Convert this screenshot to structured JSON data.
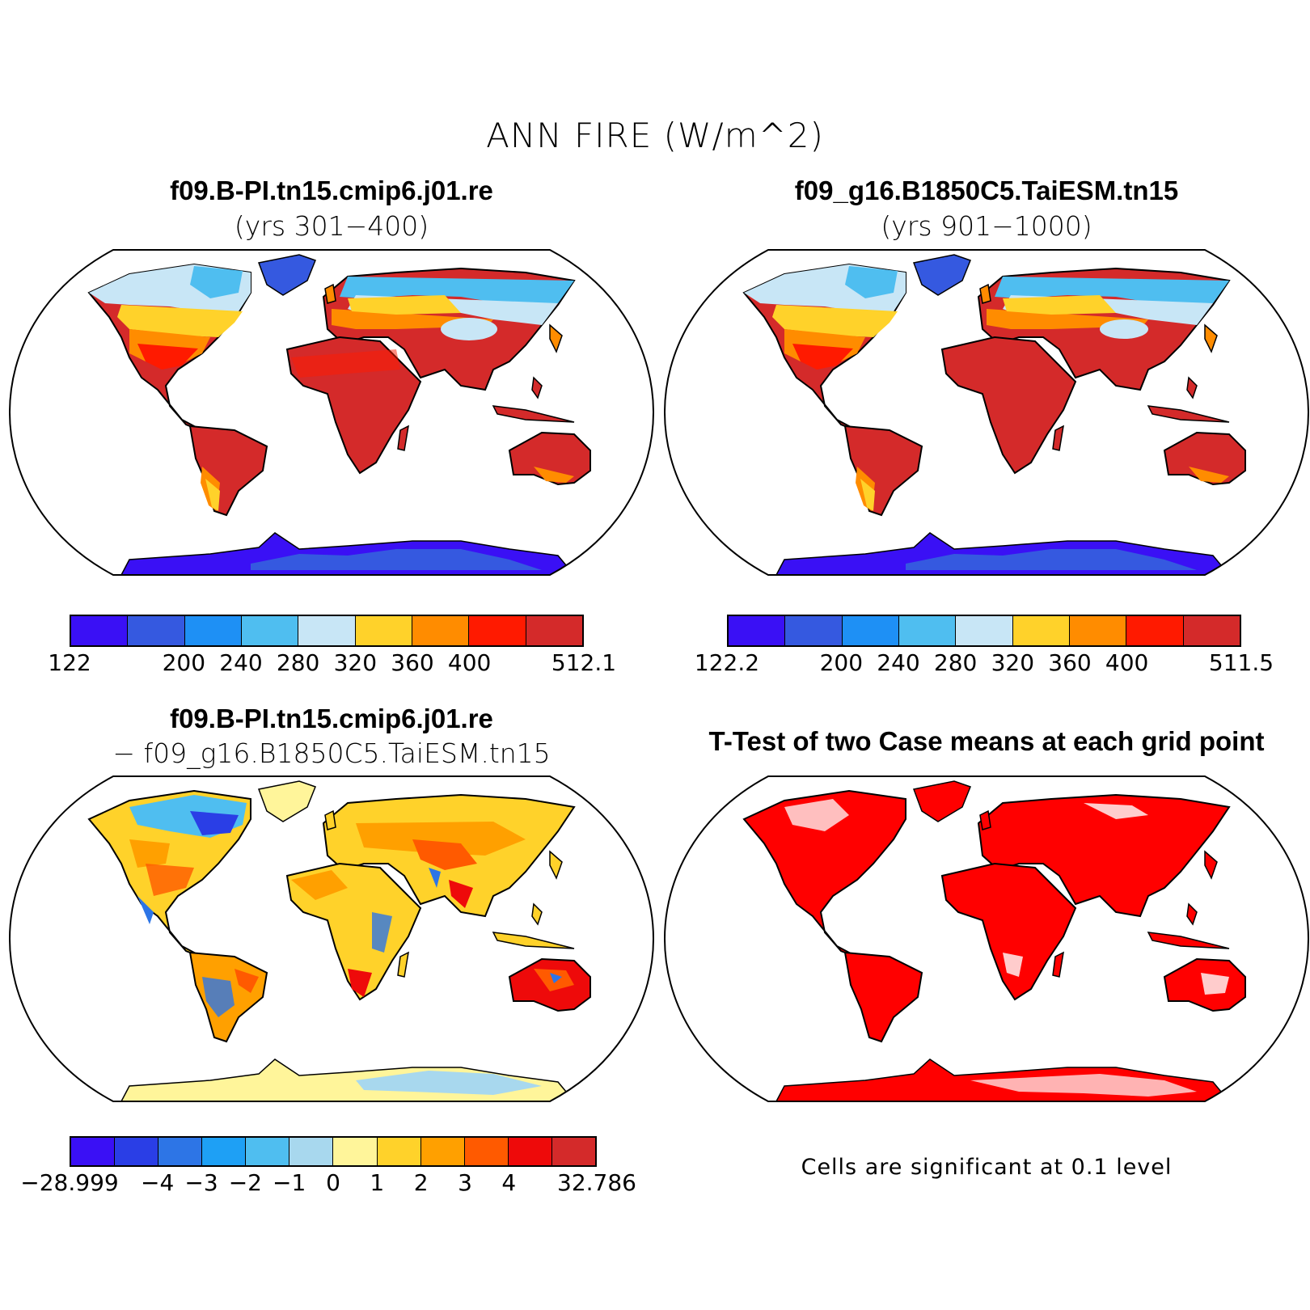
{
  "figure": {
    "title": "ANN FIRE (W/m^2)"
  },
  "panels": {
    "top_left": {
      "case": "f09.B-PI.tn15.cmip6.j01.re",
      "years": "(yrs 301−400)",
      "colorbar": {
        "colors": [
          "#3a10f5",
          "#3559e0",
          "#1e90f5",
          "#4fbef0",
          "#c8e6f6",
          "#ffd22a",
          "#ff8c00",
          "#ff1a00",
          "#d42a2a"
        ],
        "tick_labels": [
          "122",
          "200",
          "240",
          "280",
          "320",
          "360",
          "400",
          "512.1"
        ]
      }
    },
    "top_right": {
      "case": "f09_g16.B1850C5.TaiESM.tn15",
      "years": "(yrs 901−1000)",
      "colorbar": {
        "colors": [
          "#3a10f5",
          "#3559e0",
          "#1e90f5",
          "#4fbef0",
          "#c8e6f6",
          "#ffd22a",
          "#ff8c00",
          "#ff1a00",
          "#d42a2a"
        ],
        "tick_labels": [
          "122.2",
          "200",
          "240",
          "280",
          "320",
          "360",
          "400",
          "511.5"
        ]
      }
    },
    "bottom_left": {
      "case_a": "f09.B-PI.tn15.cmip6.j01.re",
      "case_b": "− f09_g16.B1850C5.TaiESM.tn15",
      "colorbar": {
        "colors": [
          "#3a10f5",
          "#2a3ee6",
          "#2d75e6",
          "#1ea0f5",
          "#4fbef0",
          "#a8d8ee",
          "#fff59a",
          "#ffd22a",
          "#ffa000",
          "#ff5a00",
          "#ee0a0a",
          "#d42a2a"
        ],
        "tick_labels": [
          "−28.999",
          "−4",
          "−3",
          "−2",
          "−1",
          "0",
          "1",
          "2",
          "3",
          "4",
          "32.786"
        ]
      }
    },
    "bottom_right": {
      "title": "T-Test of two Case means at each grid point",
      "note": "Cells are significant at 0.1 level",
      "significant_color": "#ff0000"
    }
  }
}
